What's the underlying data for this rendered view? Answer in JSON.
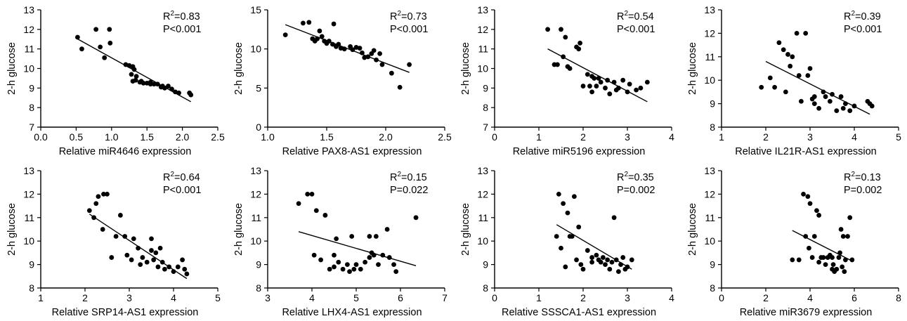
{
  "chart_data": [
    {
      "type": "scatter",
      "xlabel": "Relative miR4646 expression",
      "ylabel": "2-h glucose",
      "xlim": [
        0.0,
        2.5
      ],
      "ylim": [
        7,
        13
      ],
      "xticks": [
        "0.0",
        "0.5",
        "1.0",
        "1.5",
        "2.0",
        "2.5"
      ],
      "yticks": [
        "7",
        "8",
        "9",
        "10",
        "11",
        "12",
        "13"
      ],
      "stats": {
        "r2_prefix": "R",
        "r2_sup": "2",
        "r2_value": "=0.83",
        "p": "P<0.001"
      },
      "fit": [
        [
          0.5,
          11.55
        ],
        [
          2.12,
          8.3
        ]
      ],
      "points": [
        [
          0.52,
          11.6
        ],
        [
          0.58,
          11.0
        ],
        [
          0.78,
          12.0
        ],
        [
          0.84,
          11.1
        ],
        [
          0.9,
          10.55
        ],
        [
          0.97,
          12.0
        ],
        [
          0.98,
          11.3
        ],
        [
          1.2,
          10.2
        ],
        [
          1.25,
          10.15
        ],
        [
          1.28,
          9.7
        ],
        [
          1.3,
          10.1
        ],
        [
          1.32,
          9.95
        ],
        [
          1.34,
          9.4
        ],
        [
          1.35,
          9.6
        ],
        [
          1.4,
          9.3
        ],
        [
          1.42,
          9.35
        ],
        [
          1.45,
          9.25
        ],
        [
          1.5,
          9.25
        ],
        [
          1.55,
          9.3
        ],
        [
          1.6,
          9.2
        ],
        [
          1.65,
          9.2
        ],
        [
          1.7,
          9.05
        ],
        [
          1.72,
          9.1
        ],
        [
          1.75,
          9.0
        ],
        [
          1.8,
          9.1
        ],
        [
          1.85,
          8.95
        ],
        [
          1.9,
          8.8
        ],
        [
          1.95,
          8.75
        ],
        [
          2.1,
          8.75
        ],
        [
          2.12,
          8.65
        ],
        [
          1.3,
          9.35
        ],
        [
          1.55,
          9.2
        ]
      ]
    },
    {
      "type": "scatter",
      "xlabel": "Relative PAX8-AS1 expression",
      "ylabel": "2-h glucose",
      "xlim": [
        1.0,
        2.5
      ],
      "ylim": [
        0,
        15
      ],
      "xticks": [
        "1.0",
        "1.5",
        "2.0",
        "2.5"
      ],
      "yticks": [
        "0",
        "5",
        "10",
        "15"
      ],
      "stats": {
        "r2_prefix": "R",
        "r2_sup": "2",
        "r2_value": "=0.73",
        "p": "P<0.001"
      },
      "fit": [
        [
          1.15,
          13.1
        ],
        [
          2.2,
          7.0
        ]
      ],
      "points": [
        [
          1.15,
          11.8
        ],
        [
          1.3,
          13.3
        ],
        [
          1.35,
          13.4
        ],
        [
          1.38,
          11.3
        ],
        [
          1.4,
          11.0
        ],
        [
          1.42,
          11.3
        ],
        [
          1.44,
          12.3
        ],
        [
          1.46,
          11.6
        ],
        [
          1.48,
          11.0
        ],
        [
          1.5,
          10.7
        ],
        [
          1.52,
          11.0
        ],
        [
          1.55,
          10.6
        ],
        [
          1.56,
          13.2
        ],
        [
          1.58,
          10.3
        ],
        [
          1.6,
          10.6
        ],
        [
          1.62,
          10.1
        ],
        [
          1.65,
          10.0
        ],
        [
          1.7,
          10.3
        ],
        [
          1.72,
          9.9
        ],
        [
          1.75,
          10.2
        ],
        [
          1.78,
          10.1
        ],
        [
          1.8,
          9.5
        ],
        [
          1.85,
          9.0
        ],
        [
          1.88,
          9.4
        ],
        [
          1.9,
          9.8
        ],
        [
          1.92,
          8.6
        ],
        [
          1.95,
          9.4
        ],
        [
          1.97,
          8.0
        ],
        [
          2.05,
          6.9
        ],
        [
          2.12,
          5.1
        ],
        [
          2.2,
          8.0
        ],
        [
          1.82,
          8.9
        ]
      ]
    },
    {
      "type": "scatter",
      "xlabel": "Relative miR5196 expression",
      "ylabel": "2-h glucose",
      "xlim": [
        0,
        4
      ],
      "ylim": [
        7,
        13
      ],
      "xticks": [
        "0",
        "1",
        "2",
        "3",
        "4"
      ],
      "yticks": [
        "7",
        "8",
        "9",
        "10",
        "11",
        "12",
        "13"
      ],
      "stats": {
        "r2_prefix": "R",
        "r2_sup": "2",
        "r2_value": "=0.54",
        "p": "P<0.001"
      },
      "fit": [
        [
          1.2,
          11.0
        ],
        [
          3.45,
          8.3
        ]
      ],
      "points": [
        [
          1.2,
          12.0
        ],
        [
          1.35,
          10.2
        ],
        [
          1.42,
          10.2
        ],
        [
          1.5,
          12.0
        ],
        [
          1.55,
          10.6
        ],
        [
          1.6,
          11.6
        ],
        [
          1.65,
          10.1
        ],
        [
          1.7,
          10.0
        ],
        [
          1.85,
          11.1
        ],
        [
          1.9,
          11.0
        ],
        [
          1.93,
          11.3
        ],
        [
          2.0,
          9.1
        ],
        [
          2.1,
          9.7
        ],
        [
          2.15,
          9.1
        ],
        [
          2.2,
          8.8
        ],
        [
          2.25,
          9.5
        ],
        [
          2.3,
          9.1
        ],
        [
          2.35,
          9.5
        ],
        [
          2.4,
          9.3
        ],
        [
          2.5,
          9.0
        ],
        [
          2.55,
          9.4
        ],
        [
          2.6,
          8.7
        ],
        [
          2.7,
          9.3
        ],
        [
          2.75,
          8.9
        ],
        [
          2.8,
          9.0
        ],
        [
          2.9,
          9.4
        ],
        [
          3.0,
          8.8
        ],
        [
          3.05,
          9.2
        ],
        [
          3.2,
          8.9
        ],
        [
          3.3,
          9.0
        ],
        [
          3.45,
          9.3
        ],
        [
          2.2,
          9.6
        ]
      ]
    },
    {
      "type": "scatter",
      "xlabel": "Relative IL21R-AS1 expression",
      "ylabel": "2-h glucose",
      "xlim": [
        1,
        5
      ],
      "ylim": [
        8,
        13
      ],
      "xticks": [
        "1",
        "2",
        "3",
        "4",
        "5"
      ],
      "yticks": [
        "8",
        "9",
        "10",
        "11",
        "12",
        "13"
      ],
      "stats": {
        "r2_prefix": "R",
        "r2_sup": "2",
        "r2_value": "=0.39",
        "p": "P<0.001"
      },
      "fit": [
        [
          2.0,
          10.8
        ],
        [
          4.35,
          8.55
        ]
      ],
      "points": [
        [
          1.9,
          9.7
        ],
        [
          2.1,
          10.1
        ],
        [
          2.2,
          9.7
        ],
        [
          2.3,
          11.6
        ],
        [
          2.4,
          11.3
        ],
        [
          2.45,
          9.5
        ],
        [
          2.5,
          11.1
        ],
        [
          2.55,
          10.6
        ],
        [
          2.6,
          11.0
        ],
        [
          2.7,
          12.0
        ],
        [
          2.75,
          10.2
        ],
        [
          2.8,
          9.1
        ],
        [
          2.9,
          12.0
        ],
        [
          2.95,
          10.2
        ],
        [
          3.0,
          10.5
        ],
        [
          3.05,
          9.2
        ],
        [
          3.1,
          9.0
        ],
        [
          3.2,
          8.8
        ],
        [
          3.3,
          9.5
        ],
        [
          3.35,
          9.3
        ],
        [
          3.45,
          9.1
        ],
        [
          3.5,
          9.4
        ],
        [
          3.6,
          8.7
        ],
        [
          3.7,
          9.3
        ],
        [
          3.75,
          8.8
        ],
        [
          3.8,
          9.0
        ],
        [
          3.9,
          8.7
        ],
        [
          4.0,
          8.9
        ],
        [
          4.3,
          9.1
        ],
        [
          4.35,
          9.0
        ],
        [
          4.4,
          8.9
        ],
        [
          3.1,
          9.3
        ]
      ]
    },
    {
      "type": "scatter",
      "xlabel": "Relative SRP14-AS1 expression",
      "ylabel": "2-h glucose",
      "xlim": [
        1,
        5
      ],
      "ylim": [
        8,
        13
      ],
      "xticks": [
        "1",
        "2",
        "3",
        "4",
        "5"
      ],
      "yticks": [
        "8",
        "9",
        "10",
        "11",
        "12",
        "13"
      ],
      "stats": {
        "r2_prefix": "R",
        "r2_sup": "2",
        "r2_value": "=0.64",
        "p": "P<0.001"
      },
      "fit": [
        [
          2.1,
          11.15
        ],
        [
          4.3,
          8.4
        ]
      ],
      "points": [
        [
          2.1,
          11.3
        ],
        [
          2.2,
          11.0
        ],
        [
          2.25,
          11.6
        ],
        [
          2.3,
          11.9
        ],
        [
          2.4,
          10.5
        ],
        [
          2.42,
          12.0
        ],
        [
          2.5,
          12.0
        ],
        [
          2.6,
          9.3
        ],
        [
          2.7,
          10.2
        ],
        [
          2.8,
          11.1
        ],
        [
          2.9,
          10.2
        ],
        [
          2.95,
          9.4
        ],
        [
          3.05,
          9.2
        ],
        [
          3.1,
          10.1
        ],
        [
          3.2,
          9.7
        ],
        [
          3.25,
          9.0
        ],
        [
          3.3,
          9.3
        ],
        [
          3.4,
          9.1
        ],
        [
          3.5,
          10.1
        ],
        [
          3.55,
          9.2
        ],
        [
          3.6,
          9.5
        ],
        [
          3.65,
          8.9
        ],
        [
          3.7,
          9.7
        ],
        [
          3.75,
          9.1
        ],
        [
          3.8,
          8.8
        ],
        [
          3.9,
          8.9
        ],
        [
          4.0,
          8.7
        ],
        [
          4.1,
          8.9
        ],
        [
          4.2,
          9.2
        ],
        [
          4.25,
          8.8
        ],
        [
          4.3,
          8.6
        ],
        [
          3.5,
          9.6
        ]
      ]
    },
    {
      "type": "scatter",
      "xlabel": "Relative LHX4-AS1 expression",
      "ylabel": "2-h glucose",
      "xlim": [
        3,
        7
      ],
      "ylim": [
        8,
        13
      ],
      "xticks": [
        "3",
        "4",
        "5",
        "6",
        "7"
      ],
      "yticks": [
        "8",
        "9",
        "10",
        "11",
        "12",
        "13"
      ],
      "stats": {
        "r2_prefix": "R",
        "r2_sup": "2",
        "r2_value": "=0.15",
        "p": "P=0.022"
      },
      "fit": [
        [
          3.7,
          10.4
        ],
        [
          6.35,
          8.95
        ]
      ],
      "points": [
        [
          3.7,
          11.6
        ],
        [
          3.9,
          12.0
        ],
        [
          4.0,
          12.0
        ],
        [
          4.05,
          9.4
        ],
        [
          4.1,
          11.3
        ],
        [
          4.2,
          9.2
        ],
        [
          4.3,
          11.1
        ],
        [
          4.4,
          8.8
        ],
        [
          4.5,
          9.4
        ],
        [
          4.55,
          10.1
        ],
        [
          4.6,
          9.1
        ],
        [
          4.7,
          8.8
        ],
        [
          4.8,
          9.0
        ],
        [
          4.85,
          8.7
        ],
        [
          4.9,
          10.2
        ],
        [
          4.95,
          8.8
        ],
        [
          5.0,
          9.0
        ],
        [
          5.1,
          8.8
        ],
        [
          5.2,
          9.1
        ],
        [
          5.3,
          10.2
        ],
        [
          5.35,
          9.5
        ],
        [
          5.4,
          9.4
        ],
        [
          5.45,
          10.2
        ],
        [
          5.5,
          9.0
        ],
        [
          5.6,
          9.4
        ],
        [
          5.7,
          10.5
        ],
        [
          5.75,
          9.3
        ],
        [
          5.85,
          9.0
        ],
        [
          5.9,
          8.7
        ],
        [
          6.35,
          11.0
        ],
        [
          5.3,
          9.3
        ],
        [
          4.5,
          8.9
        ]
      ]
    },
    {
      "type": "scatter",
      "xlabel": "Relative SSSCA1-AS1 expression",
      "ylabel": "2-h glucose",
      "xlim": [
        0,
        4
      ],
      "ylim": [
        8,
        13
      ],
      "xticks": [
        "0",
        "1",
        "2",
        "3",
        "4"
      ],
      "yticks": [
        "8",
        "9",
        "10",
        "11",
        "12",
        "13"
      ],
      "stats": {
        "r2_prefix": "R",
        "r2_sup": "2",
        "r2_value": "=0.35",
        "p": "P=0.002"
      },
      "fit": [
        [
          1.4,
          10.7
        ],
        [
          3.1,
          8.8
        ]
      ],
      "points": [
        [
          1.4,
          10.2
        ],
        [
          1.45,
          12.0
        ],
        [
          1.5,
          9.7
        ],
        [
          1.55,
          11.6
        ],
        [
          1.6,
          8.9
        ],
        [
          1.65,
          11.2
        ],
        [
          1.7,
          10.2
        ],
        [
          1.75,
          10.2
        ],
        [
          1.8,
          11.9
        ],
        [
          1.85,
          9.2
        ],
        [
          1.9,
          10.6
        ],
        [
          1.95,
          9.0
        ],
        [
          2.0,
          8.8
        ],
        [
          2.1,
          9.6
        ],
        [
          2.2,
          9.1
        ],
        [
          2.3,
          9.4
        ],
        [
          2.35,
          9.2
        ],
        [
          2.4,
          9.1
        ],
        [
          2.45,
          9.3
        ],
        [
          2.5,
          9.0
        ],
        [
          2.55,
          9.2
        ],
        [
          2.6,
          8.8
        ],
        [
          2.65,
          9.1
        ],
        [
          2.7,
          11.0
        ],
        [
          2.75,
          9.2
        ],
        [
          2.8,
          8.7
        ],
        [
          2.85,
          9.0
        ],
        [
          2.9,
          9.3
        ],
        [
          2.95,
          8.8
        ],
        [
          3.0,
          8.9
        ],
        [
          3.1,
          9.2
        ],
        [
          2.2,
          9.3
        ]
      ]
    },
    {
      "type": "scatter",
      "xlabel": "Relative miR3679 expression",
      "ylabel": "2-h glucose",
      "xlim": [
        0,
        8
      ],
      "ylim": [
        8,
        13
      ],
      "xticks": [
        "0",
        "2",
        "4",
        "6",
        "8"
      ],
      "yticks": [
        "8",
        "9",
        "10",
        "11",
        "12",
        "13"
      ],
      "stats": {
        "r2_prefix": "R",
        "r2_sup": "2",
        "r2_value": "=0.13",
        "p": "P=0.002"
      },
      "fit": [
        [
          3.2,
          10.45
        ],
        [
          5.9,
          9.15
        ]
      ],
      "points": [
        [
          3.2,
          9.2
        ],
        [
          3.5,
          9.2
        ],
        [
          3.7,
          12.0
        ],
        [
          3.8,
          10.2
        ],
        [
          3.9,
          11.9
        ],
        [
          3.95,
          9.7
        ],
        [
          4.0,
          11.6
        ],
        [
          4.1,
          9.3
        ],
        [
          4.2,
          10.2
        ],
        [
          4.3,
          11.3
        ],
        [
          4.4,
          11.1
        ],
        [
          4.5,
          9.3
        ],
        [
          4.6,
          9.3
        ],
        [
          4.7,
          9.0
        ],
        [
          4.8,
          9.3
        ],
        [
          4.9,
          9.4
        ],
        [
          5.0,
          8.8
        ],
        [
          5.05,
          9.0
        ],
        [
          5.1,
          8.7
        ],
        [
          5.2,
          8.8
        ],
        [
          5.3,
          9.3
        ],
        [
          5.35,
          9.5
        ],
        [
          5.4,
          10.5
        ],
        [
          5.45,
          8.9
        ],
        [
          5.5,
          10.2
        ],
        [
          5.55,
          8.7
        ],
        [
          5.6,
          9.2
        ],
        [
          5.7,
          10.2
        ],
        [
          5.8,
          11.0
        ],
        [
          5.9,
          9.2
        ],
        [
          5.0,
          9.3
        ],
        [
          4.4,
          9.1
        ]
      ]
    }
  ]
}
